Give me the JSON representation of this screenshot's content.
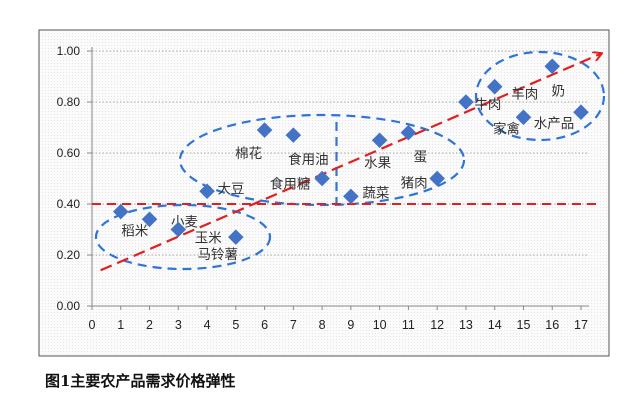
{
  "chart_data": {
    "type": "scatter",
    "title": "图1主要农产品需求价格弹性",
    "xlabel": "",
    "ylabel": "",
    "xlim": [
      0,
      17
    ],
    "ylim": [
      0,
      1.0
    ],
    "x_ticks": [
      "0",
      "1",
      "2",
      "3",
      "4",
      "5",
      "6",
      "7",
      "8",
      "9",
      "10",
      "11",
      "12",
      "13",
      "14",
      "15",
      "16",
      "17"
    ],
    "y_ticks": [
      "0.00",
      "0.20",
      "0.40",
      "0.60",
      "0.80",
      "1.00"
    ],
    "grid": true,
    "series": [
      {
        "name": "需求价格弹性",
        "color": "#4472C4",
        "points": [
          {
            "x": 1,
            "y": 0.37,
            "label": "稻米"
          },
          {
            "x": 2,
            "y": 0.34,
            "label": "小麦"
          },
          {
            "x": 3,
            "y": 0.3,
            "label": "玉米"
          },
          {
            "x": 4,
            "y": 0.45,
            "label": "大豆"
          },
          {
            "x": 5,
            "y": 0.27,
            "label": "马铃薯"
          },
          {
            "x": 6,
            "y": 0.69,
            "label": "棉花"
          },
          {
            "x": 7,
            "y": 0.67,
            "label": "食用油"
          },
          {
            "x": 8,
            "y": 0.5,
            "label": "食用糖"
          },
          {
            "x": 9,
            "y": 0.43,
            "label": "蔬菜"
          },
          {
            "x": 10,
            "y": 0.65,
            "label": "水果"
          },
          {
            "x": 11,
            "y": 0.68,
            "label": "蛋"
          },
          {
            "x": 12,
            "y": 0.5,
            "label": "猪肉"
          },
          {
            "x": 13,
            "y": 0.8,
            "label": "牛肉"
          },
          {
            "x": 14,
            "y": 0.86,
            "label": "羊肉"
          },
          {
            "x": 15,
            "y": 0.74,
            "label": "家禽"
          },
          {
            "x": 16,
            "y": 0.94,
            "label": "奶"
          },
          {
            "x": 17,
            "y": 0.76,
            "label": "水产品"
          }
        ]
      }
    ],
    "reference_line_y": 0.4,
    "trend_arrow": {
      "from": [
        0.3,
        0.14
      ],
      "to": [
        17.7,
        0.99
      ]
    },
    "divider_x": 8.5,
    "colors": {
      "trend": "#E02020",
      "cluster": "#2E75D6",
      "point": "#4472C4"
    }
  }
}
